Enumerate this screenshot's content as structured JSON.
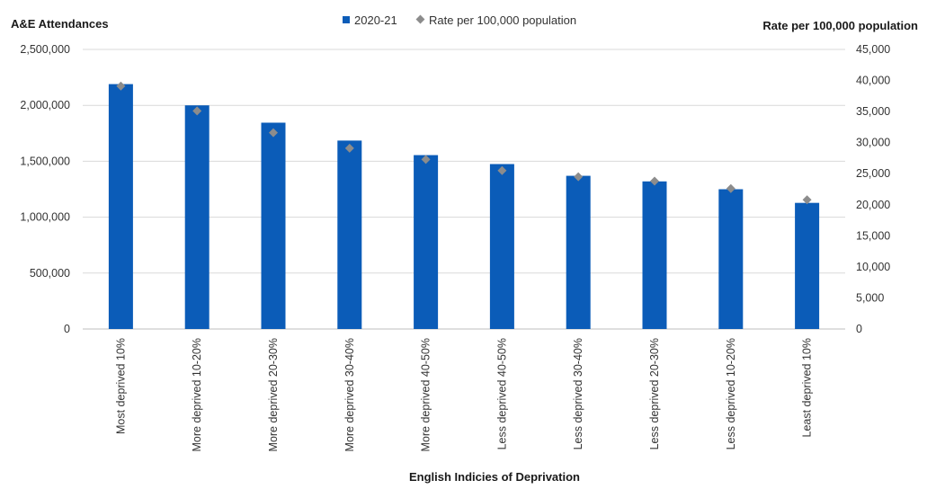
{
  "chart_data": {
    "type": "bar",
    "title": "",
    "xlabel": "English Indicies of Deprivation",
    "ylabel": "A&E Attendances",
    "y2label": "Rate per 100,000 population",
    "categories": [
      "Most deprived 10%",
      "More deprived 10-20%",
      "More deprived 20-30%",
      "More deprived 30-40%",
      "More deprived 40-50%",
      "Less deprived 40-50%",
      "Less deprived 30-40%",
      "Less deprived 20-30%",
      "Less deprived 10-20%",
      "Least deprived 10%"
    ],
    "series": [
      {
        "name": "2020-21",
        "type": "bar",
        "axis": "left",
        "color": "#0b5cb8",
        "values": [
          2190000,
          2000000,
          1845000,
          1685000,
          1555000,
          1475000,
          1370000,
          1320000,
          1250000,
          1128000
        ]
      },
      {
        "name": "Rate per 100,000 population",
        "type": "scatter",
        "marker": "diamond",
        "axis": "right",
        "color": "#8c8c8c",
        "values": [
          39100,
          35100,
          31600,
          29100,
          27300,
          25500,
          24500,
          23800,
          22600,
          20800
        ]
      }
    ],
    "ylim": [
      0,
      2500000
    ],
    "y2lim": [
      0,
      45000
    ],
    "yticks": [
      "0",
      "500,000",
      "1,000,000",
      "1,500,000",
      "2,000,000",
      "2,500,000"
    ],
    "y2ticks": [
      "0",
      "5,000",
      "10,000",
      "15,000",
      "20,000",
      "25,000",
      "30,000",
      "35,000",
      "40,000",
      "45,000"
    ],
    "grid": true,
    "legend_position": "top-center"
  }
}
